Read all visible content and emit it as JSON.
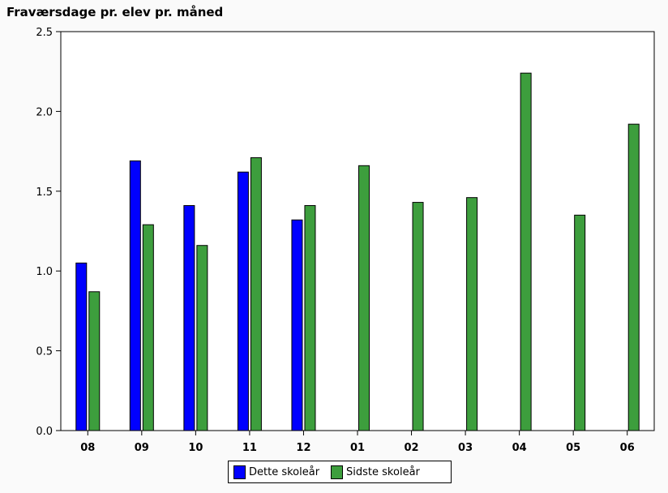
{
  "chart_data": {
    "type": "bar",
    "title": "Fraværsdage pr. elev pr. måned",
    "xlabel": "",
    "ylabel": "",
    "categories": [
      "08",
      "09",
      "10",
      "11",
      "12",
      "01",
      "02",
      "03",
      "04",
      "05",
      "06"
    ],
    "series": [
      {
        "name": "Dette skoleår",
        "color": "#0000ff",
        "values": [
          1.05,
          1.69,
          1.41,
          1.62,
          1.32,
          null,
          null,
          null,
          null,
          null,
          null
        ]
      },
      {
        "name": "Sidste skoleår",
        "color": "#3d9e3d",
        "values": [
          0.87,
          1.29,
          1.16,
          1.71,
          1.41,
          1.66,
          1.43,
          1.46,
          2.24,
          1.35,
          1.92
        ]
      }
    ],
    "ylim": [
      0,
      2.5
    ],
    "yticks": [
      0.0,
      0.5,
      1.0,
      1.5,
      2.0,
      2.5
    ],
    "ytick_labels": [
      "0.0",
      "0.5",
      "1.0",
      "1.5",
      "2.0",
      "2.5"
    ],
    "grid": false,
    "legend_position": "bottom"
  }
}
